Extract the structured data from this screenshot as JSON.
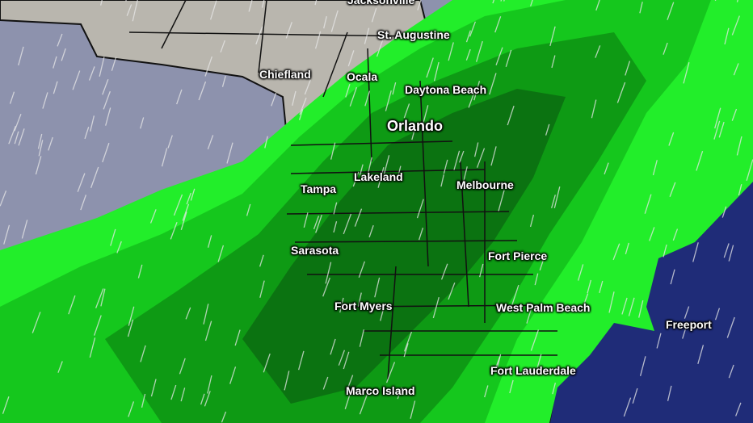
{
  "colors": {
    "gulf": "#8d92ad",
    "atlantic": "#1f2c78",
    "land": "#b9b6ae",
    "rain_light": "#22ee2a",
    "rain_mid": "#15c41c",
    "rain_heavy": "#0d9514",
    "rain_heaviest": "#0a6c10",
    "wind_arrows": "#e8e8e8"
  },
  "cities": [
    {
      "name": "Jacksonville"
    },
    {
      "name": "St. Augustine"
    },
    {
      "name": "Chiefland"
    },
    {
      "name": "Ocala"
    },
    {
      "name": "Daytona Beach"
    },
    {
      "name": "Orlando"
    },
    {
      "name": "Lakeland"
    },
    {
      "name": "Tampa"
    },
    {
      "name": "Melbourne"
    },
    {
      "name": "Sarasota"
    },
    {
      "name": "Fort Pierce"
    },
    {
      "name": "Fort Myers"
    },
    {
      "name": "West Palm Beach"
    },
    {
      "name": "Freeport"
    },
    {
      "name": "Fort Lauderdale"
    },
    {
      "name": "Marco Island"
    }
  ]
}
